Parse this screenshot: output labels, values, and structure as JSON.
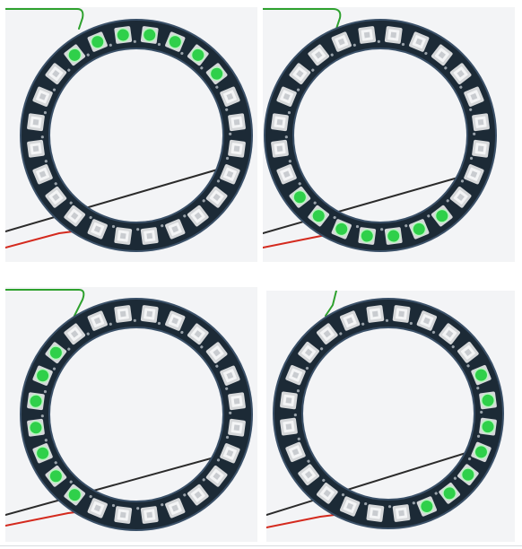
{
  "figure": {
    "led_count": 24,
    "colors": {
      "board": "#1c2a36",
      "board_edge": "#3a5068",
      "led_off": "#d6d8da",
      "led_off_inner": "#f4f5f6",
      "led_on": "#2fd04a",
      "led_on_glow": "#b8f5c0",
      "wire_black": "#2b2b2b",
      "wire_red": "#d42a1e",
      "wire_green": "#2ea12e",
      "panel_bg": "#f3f4f6"
    },
    "panels": [
      {
        "name": "top-left",
        "lit_leds": [
          21,
          22,
          23,
          0,
          1,
          2,
          3
        ]
      },
      {
        "name": "top-right",
        "lit_leds": [
          9,
          10,
          11,
          12,
          13,
          14,
          15
        ]
      },
      {
        "name": "bottom-left",
        "lit_leds": [
          14,
          15,
          16,
          17,
          18,
          19,
          20
        ]
      },
      {
        "name": "bottom-right",
        "lit_leds": [
          4,
          5,
          6,
          7,
          8,
          9,
          10
        ]
      }
    ]
  }
}
